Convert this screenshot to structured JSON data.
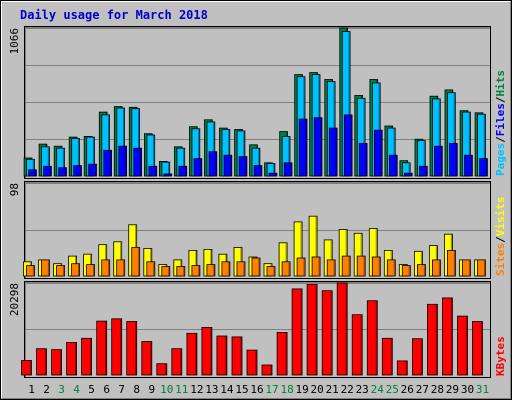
{
  "chart_data": [
    {
      "type": "bar",
      "panel": "hits-files-pages",
      "title": "Daily usage for March 2018",
      "ymax_label": "1066",
      "ylim": [
        0,
        1066
      ],
      "categories": [
        "1",
        "2",
        "3",
        "4",
        "5",
        "6",
        "7",
        "8",
        "9",
        "10",
        "11",
        "12",
        "13",
        "14",
        "15",
        "16",
        "17",
        "18",
        "19",
        "20",
        "21",
        "22",
        "23",
        "24",
        "25",
        "26",
        "27",
        "28",
        "29",
        "30",
        "31"
      ],
      "weekend_days": [
        "3",
        "4",
        "10",
        "11",
        "17",
        "18",
        "24",
        "25",
        "31"
      ],
      "legend": [
        "Pages",
        "Files",
        "Hits"
      ],
      "series": [
        {
          "name": "Hits",
          "color": "#008040",
          "values": [
            130,
            230,
            215,
            280,
            285,
            460,
            500,
            495,
            305,
            105,
            210,
            355,
            405,
            345,
            335,
            225,
            95,
            320,
            730,
            745,
            695,
            1066,
            580,
            695,
            360,
            110,
            265,
            575,
            620,
            470,
            455
          ]
        },
        {
          "name": "Files",
          "color": "#00C0FF",
          "values": [
            120,
            210,
            200,
            270,
            280,
            440,
            490,
            485,
            295,
            100,
            200,
            340,
            390,
            335,
            325,
            200,
            90,
            285,
            715,
            730,
            680,
            1040,
            560,
            670,
            345,
            95,
            255,
            555,
            600,
            460,
            445
          ]
        },
        {
          "name": "Pages",
          "color": "#0000FF",
          "values": [
            45,
            70,
            60,
            75,
            85,
            185,
            215,
            200,
            70,
            15,
            70,
            125,
            175,
            150,
            140,
            75,
            20,
            95,
            410,
            420,
            345,
            440,
            235,
            330,
            150,
            20,
            70,
            215,
            235,
            150,
            125
          ]
        }
      ]
    },
    {
      "type": "bar",
      "panel": "visits-sites",
      "ymax_label": "98",
      "ylim": [
        0,
        98
      ],
      "legend": [
        "Sites",
        "Visits"
      ],
      "series": [
        {
          "name": "Visits",
          "color": "#FFFF00",
          "values": [
            15,
            17,
            13,
            21,
            23,
            33,
            36,
            54,
            29,
            12,
            17,
            27,
            28,
            23,
            30,
            20,
            13,
            35,
            57,
            63,
            38,
            49,
            45,
            50,
            27,
            12,
            26,
            32,
            44,
            17,
            17
          ]
        },
        {
          "name": "Sites",
          "color": "#FF8000",
          "values": [
            11,
            17,
            11,
            13,
            12,
            17,
            17,
            30,
            15,
            10,
            10,
            11,
            12,
            15,
            15,
            19,
            10,
            15,
            19,
            20,
            17,
            21,
            21,
            20,
            17,
            11,
            12,
            17,
            27,
            17,
            17
          ]
        }
      ]
    },
    {
      "type": "bar",
      "panel": "kbytes",
      "ymax_label": "20298",
      "ylim": [
        0,
        20298
      ],
      "legend": [
        "KBytes"
      ],
      "series": [
        {
          "name": "KBytes",
          "color": "#FF0000",
          "values": [
            3200,
            5800,
            5600,
            7200,
            8100,
            11900,
            12400,
            11800,
            7400,
            2500,
            5800,
            9200,
            10500,
            8600,
            8400,
            5500,
            2200,
            9400,
            19000,
            20000,
            18600,
            20298,
            13300,
            16400,
            8100,
            3100,
            8000,
            15600,
            17000,
            13000,
            11800
          ]
        }
      ]
    }
  ]
}
